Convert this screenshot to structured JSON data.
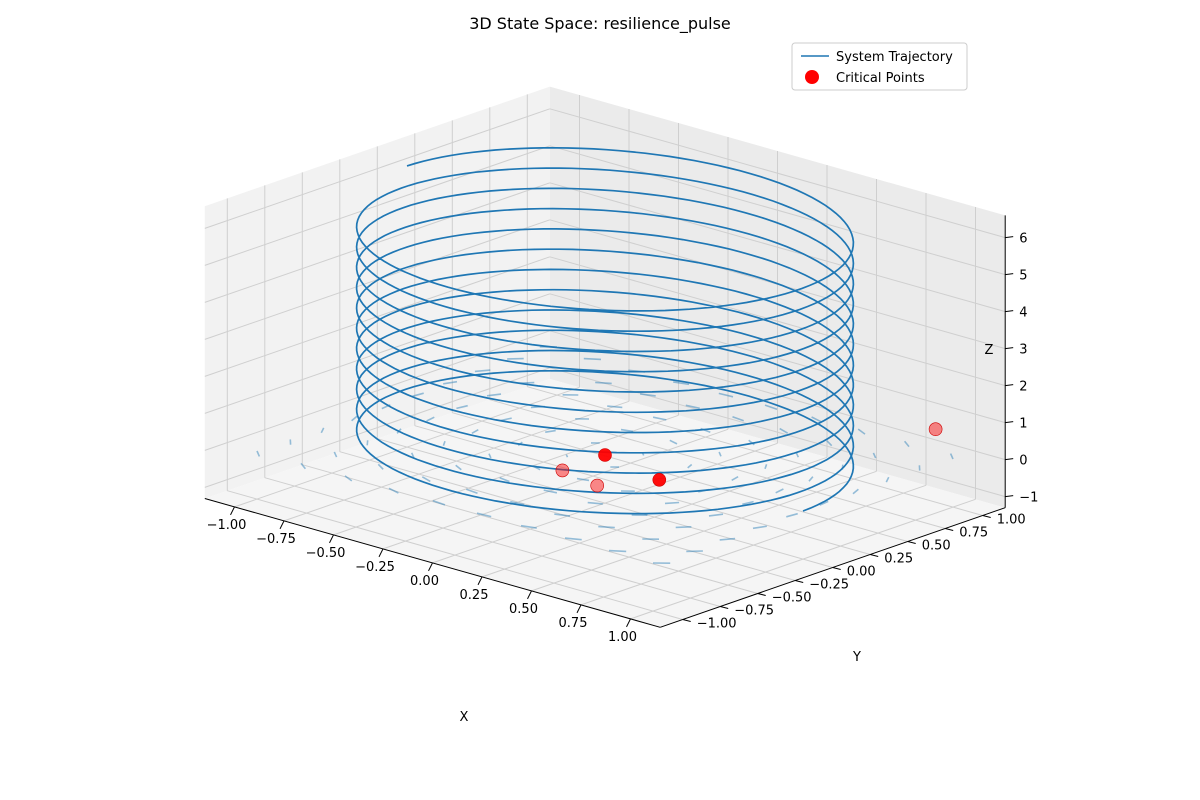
{
  "chart_data": {
    "type": "line3d",
    "title": "3D State Space: resilience_pulse",
    "xlabel": "X",
    "ylabel": "Y",
    "zlabel": "Z",
    "xlim": [
      -1.15,
      1.15
    ],
    "ylim": [
      -1.15,
      1.15
    ],
    "zlim": [
      -1.3,
      6.6
    ],
    "x_ticks": [
      "−1.00",
      "−0.75",
      "−0.50",
      "−0.25",
      "0.00",
      "0.25",
      "0.50",
      "0.75",
      "1.00"
    ],
    "y_ticks": [
      "−1.00",
      "−0.75",
      "−0.50",
      "−0.25",
      "0.00",
      "0.25",
      "0.50",
      "0.75",
      "1.00"
    ],
    "z_ticks": [
      "−1",
      "0",
      "1",
      "2",
      "3",
      "4",
      "5",
      "6"
    ],
    "x_tick_values": [
      -1,
      -0.75,
      -0.5,
      -0.25,
      0,
      0.25,
      0.5,
      0.75,
      1
    ],
    "y_tick_values": [
      -1,
      -0.75,
      -0.5,
      -0.25,
      0,
      0.25,
      0.5,
      0.75,
      1
    ],
    "z_tick_values": [
      -1,
      0,
      1,
      2,
      3,
      4,
      5,
      6
    ],
    "grid": true,
    "legend_position": "top-right",
    "series": [
      {
        "name": "System Trajectory",
        "kind": "helix",
        "color": "#1f77b4",
        "radius": 1.0,
        "z_start": 0.0,
        "z_end": 6.3,
        "turns": 11.5,
        "start_angle_deg": 0
      },
      {
        "name": "Critical Points",
        "kind": "scatter",
        "color": "#ff0000",
        "points": [
          {
            "x": 0.05,
            "y": -0.35,
            "z": 0.15
          },
          {
            "x": 0.0,
            "y": 0.0,
            "z": 0.0
          },
          {
            "x": 0.15,
            "y": -0.25,
            "z": -0.25
          },
          {
            "x": 0.35,
            "y": -0.1,
            "z": 0.0
          },
          {
            "x": 0.95,
            "y": 0.95,
            "z": 0.8
          }
        ]
      }
    ],
    "vector_field": {
      "color": "#1f77b4",
      "z_level": 0,
      "grid_range": [
        -1,
        1
      ],
      "grid_steps": 10
    }
  }
}
